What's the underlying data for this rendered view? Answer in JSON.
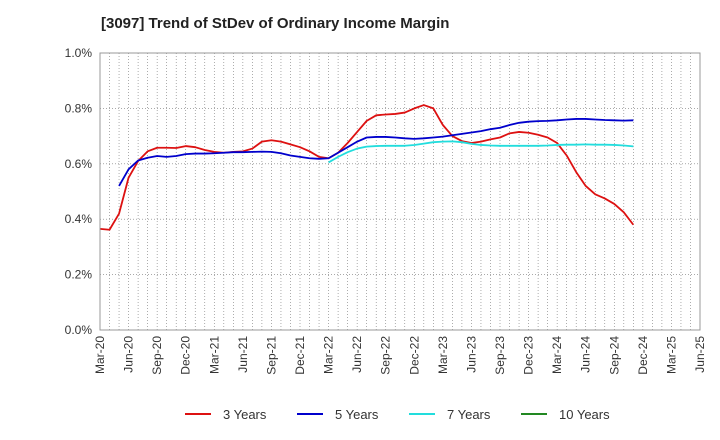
{
  "chart_data": {
    "type": "line",
    "title": "[3097]  Trend of StDev of Ordinary Income Margin",
    "xlabel": "",
    "ylabel": "",
    "ylim": [
      0,
      1.0
    ],
    "y_ticks": [
      "0.0%",
      "0.2%",
      "0.4%",
      "0.6%",
      "0.8%",
      "1.0%"
    ],
    "x_range": [
      "2020-03",
      "2025-06"
    ],
    "x_tick_labels": [
      "Mar-20",
      "Jun-20",
      "Sep-20",
      "Dec-20",
      "Mar-21",
      "Jun-21",
      "Sep-21",
      "Dec-21",
      "Mar-22",
      "Jun-22",
      "Sep-22",
      "Dec-22",
      "Mar-23",
      "Jun-23",
      "Sep-23",
      "Dec-23",
      "Mar-24",
      "Jun-24",
      "Sep-24",
      "Dec-24",
      "Mar-25",
      "Jun-25"
    ],
    "grid": true,
    "legend_position": "bottom",
    "colors": {
      "3 Years": "#dd1111",
      "5 Years": "#0000cc",
      "7 Years": "#22dddd",
      "10 Years": "#228822"
    },
    "series": [
      {
        "name": "3 Years",
        "color": "#dd1111",
        "points": [
          [
            "2020-03",
            0.365
          ],
          [
            "2020-04",
            0.362
          ],
          [
            "2020-05",
            0.42
          ],
          [
            "2020-06",
            0.55
          ],
          [
            "2020-07",
            0.61
          ],
          [
            "2020-08",
            0.645
          ],
          [
            "2020-09",
            0.658
          ],
          [
            "2020-10",
            0.658
          ],
          [
            "2020-11",
            0.657
          ],
          [
            "2020-12",
            0.664
          ],
          [
            "2021-01",
            0.66
          ],
          [
            "2021-02",
            0.65
          ],
          [
            "2021-03",
            0.643
          ],
          [
            "2021-04",
            0.64
          ],
          [
            "2021-05",
            0.643
          ],
          [
            "2021-06",
            0.645
          ],
          [
            "2021-07",
            0.655
          ],
          [
            "2021-08",
            0.68
          ],
          [
            "2021-09",
            0.685
          ],
          [
            "2021-10",
            0.68
          ],
          [
            "2021-11",
            0.67
          ],
          [
            "2021-12",
            0.66
          ],
          [
            "2022-01",
            0.645
          ],
          [
            "2022-02",
            0.625
          ],
          [
            "2022-03",
            0.62
          ],
          [
            "2022-04",
            0.64
          ],
          [
            "2022-05",
            0.675
          ],
          [
            "2022-06",
            0.715
          ],
          [
            "2022-07",
            0.755
          ],
          [
            "2022-08",
            0.775
          ],
          [
            "2022-09",
            0.778
          ],
          [
            "2022-10",
            0.78
          ],
          [
            "2022-11",
            0.785
          ],
          [
            "2022-12",
            0.8
          ],
          [
            "2023-01",
            0.812
          ],
          [
            "2023-02",
            0.8
          ],
          [
            "2023-03",
            0.74
          ],
          [
            "2023-04",
            0.7
          ],
          [
            "2023-05",
            0.682
          ],
          [
            "2023-06",
            0.675
          ],
          [
            "2023-07",
            0.68
          ],
          [
            "2023-08",
            0.688
          ],
          [
            "2023-09",
            0.695
          ],
          [
            "2023-10",
            0.71
          ],
          [
            "2023-11",
            0.715
          ],
          [
            "2023-12",
            0.712
          ],
          [
            "2024-01",
            0.705
          ],
          [
            "2024-02",
            0.695
          ],
          [
            "2024-03",
            0.675
          ],
          [
            "2024-04",
            0.63
          ],
          [
            "2024-05",
            0.57
          ],
          [
            "2024-06",
            0.52
          ],
          [
            "2024-07",
            0.49
          ],
          [
            "2024-08",
            0.475
          ],
          [
            "2024-09",
            0.455
          ],
          [
            "2024-10",
            0.425
          ],
          [
            "2024-11",
            0.38
          ]
        ]
      },
      {
        "name": "5 Years",
        "color": "#0000cc",
        "points": [
          [
            "2020-05",
            0.52
          ],
          [
            "2020-06",
            0.58
          ],
          [
            "2020-07",
            0.612
          ],
          [
            "2020-08",
            0.622
          ],
          [
            "2020-09",
            0.628
          ],
          [
            "2020-10",
            0.625
          ],
          [
            "2020-11",
            0.628
          ],
          [
            "2020-12",
            0.635
          ],
          [
            "2021-01",
            0.637
          ],
          [
            "2021-02",
            0.637
          ],
          [
            "2021-03",
            0.638
          ],
          [
            "2021-04",
            0.64
          ],
          [
            "2021-05",
            0.642
          ],
          [
            "2021-06",
            0.642
          ],
          [
            "2021-07",
            0.643
          ],
          [
            "2021-08",
            0.644
          ],
          [
            "2021-09",
            0.643
          ],
          [
            "2021-10",
            0.638
          ],
          [
            "2021-11",
            0.63
          ],
          [
            "2021-12",
            0.625
          ],
          [
            "2022-01",
            0.62
          ],
          [
            "2022-02",
            0.618
          ],
          [
            "2022-03",
            0.62
          ],
          [
            "2022-04",
            0.64
          ],
          [
            "2022-05",
            0.66
          ],
          [
            "2022-06",
            0.68
          ],
          [
            "2022-07",
            0.695
          ],
          [
            "2022-08",
            0.697
          ],
          [
            "2022-09",
            0.697
          ],
          [
            "2022-10",
            0.695
          ],
          [
            "2022-11",
            0.692
          ],
          [
            "2022-12",
            0.69
          ],
          [
            "2023-01",
            0.692
          ],
          [
            "2023-02",
            0.695
          ],
          [
            "2023-03",
            0.698
          ],
          [
            "2023-04",
            0.703
          ],
          [
            "2023-05",
            0.708
          ],
          [
            "2023-06",
            0.713
          ],
          [
            "2023-07",
            0.718
          ],
          [
            "2023-08",
            0.725
          ],
          [
            "2023-09",
            0.73
          ],
          [
            "2023-10",
            0.74
          ],
          [
            "2023-11",
            0.748
          ],
          [
            "2023-12",
            0.752
          ],
          [
            "2024-01",
            0.754
          ],
          [
            "2024-02",
            0.755
          ],
          [
            "2024-03",
            0.757
          ],
          [
            "2024-04",
            0.76
          ],
          [
            "2024-05",
            0.762
          ],
          [
            "2024-06",
            0.762
          ],
          [
            "2024-07",
            0.76
          ],
          [
            "2024-08",
            0.758
          ],
          [
            "2024-09",
            0.757
          ],
          [
            "2024-10",
            0.756
          ],
          [
            "2024-11",
            0.757
          ]
        ]
      },
      {
        "name": "7 Years",
        "color": "#22dddd",
        "points": [
          [
            "2022-03",
            0.605
          ],
          [
            "2022-04",
            0.625
          ],
          [
            "2022-05",
            0.642
          ],
          [
            "2022-06",
            0.655
          ],
          [
            "2022-07",
            0.662
          ],
          [
            "2022-08",
            0.664
          ],
          [
            "2022-09",
            0.665
          ],
          [
            "2022-10",
            0.665
          ],
          [
            "2022-11",
            0.665
          ],
          [
            "2022-12",
            0.668
          ],
          [
            "2023-01",
            0.673
          ],
          [
            "2023-02",
            0.678
          ],
          [
            "2023-03",
            0.68
          ],
          [
            "2023-04",
            0.681
          ],
          [
            "2023-05",
            0.678
          ],
          [
            "2023-06",
            0.672
          ],
          [
            "2023-07",
            0.668
          ],
          [
            "2023-08",
            0.666
          ],
          [
            "2023-09",
            0.665
          ],
          [
            "2023-10",
            0.665
          ],
          [
            "2023-11",
            0.665
          ],
          [
            "2023-12",
            0.665
          ],
          [
            "2024-01",
            0.665
          ],
          [
            "2024-02",
            0.666
          ],
          [
            "2024-03",
            0.668
          ],
          [
            "2024-04",
            0.669
          ],
          [
            "2024-05",
            0.669
          ],
          [
            "2024-06",
            0.67
          ],
          [
            "2024-07",
            0.669
          ],
          [
            "2024-08",
            0.669
          ],
          [
            "2024-09",
            0.668
          ],
          [
            "2024-10",
            0.666
          ],
          [
            "2024-11",
            0.663
          ]
        ]
      },
      {
        "name": "10 Years",
        "color": "#228822",
        "points": []
      }
    ]
  }
}
